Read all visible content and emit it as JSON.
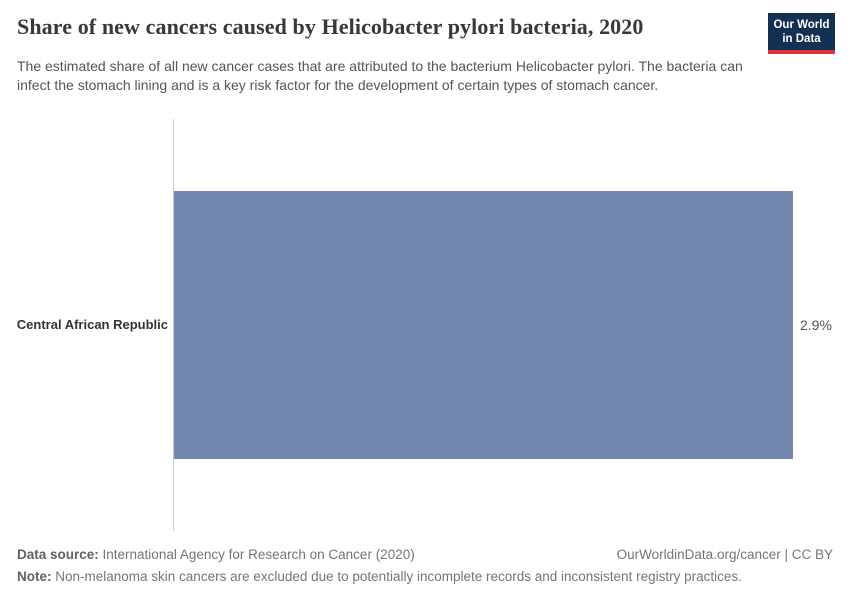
{
  "header": {
    "title": "Share of new cancers caused by Helicobacter pylori bacteria, 2020",
    "subtitle": "The estimated share of all new cancer cases that are attributed to the bacterium Helicobacter pylori. The bacteria can infect the stomach lining and is a key risk factor for the development of certain types of stomach cancer.",
    "logo": {
      "line1": "Our World",
      "line2": "in Data",
      "bg_color": "#132f52",
      "stripe_color": "#d8353d"
    }
  },
  "chart_data": {
    "type": "bar",
    "orientation": "horizontal",
    "title": "Share of new cancers caused by Helicobacter pylori bacteria, 2020",
    "year": "2020",
    "categories": [
      "Central African Republic"
    ],
    "values": [
      2.9
    ],
    "value_labels": [
      "2.9%"
    ],
    "unit": "%",
    "xlim": [
      0,
      2.9
    ],
    "grid": false,
    "legend": false,
    "bar_color": "#7287ad",
    "axis_line_color": "#cccccc"
  },
  "footer": {
    "datasource_label": "Data source:",
    "datasource_text": " International Agency for Research on Cancer (2020)",
    "rights": "OurWorldinData.org/cancer | CC BY",
    "note_label": "Note:",
    "note_text": " Non-melanoma skin cancers are excluded due to potentially incomplete records and inconsistent registry practices."
  }
}
